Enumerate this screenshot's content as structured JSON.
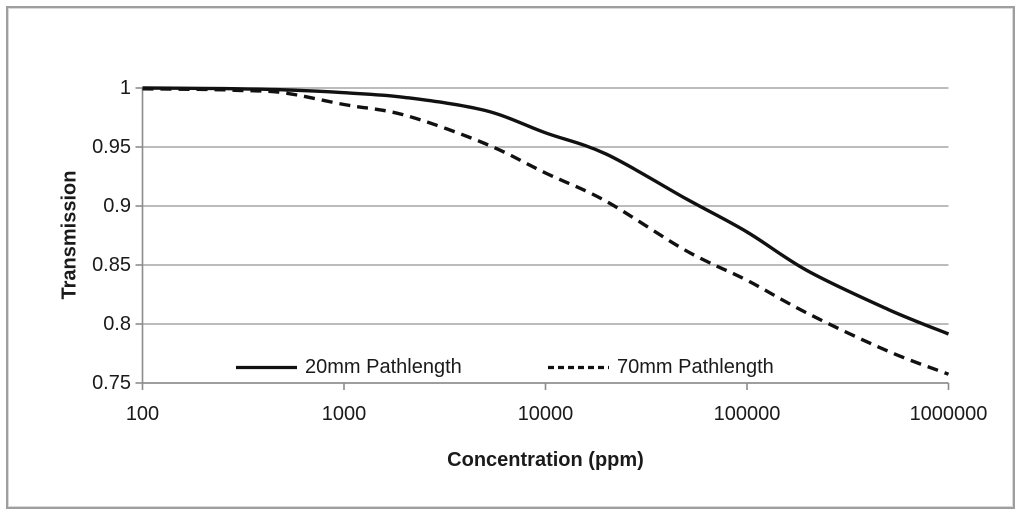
{
  "chart_data": {
    "type": "line",
    "title": "",
    "xlabel": "Concentration (ppm)",
    "ylabel": "Transmission",
    "x_scale": "log",
    "xlim": [
      100,
      1000000
    ],
    "ylim": [
      0.75,
      1.0
    ],
    "grid": "horizontal",
    "legend_position": "inside-bottom",
    "x_ticks": {
      "values": [
        100,
        1000,
        10000,
        100000,
        1000000
      ],
      "labels": [
        "100",
        "1000",
        "10000",
        "100000",
        "1000000"
      ]
    },
    "y_ticks": {
      "values": [
        1,
        0.95,
        0.9,
        0.85,
        0.8,
        0.75
      ],
      "labels": [
        "1",
        "0.95",
        "0.9",
        "0.85",
        "0.8",
        "0.75"
      ]
    },
    "x": [
      100,
      200,
      300,
      500,
      1000,
      2000,
      5000,
      10000,
      20000,
      50000,
      100000,
      200000,
      500000,
      1000000
    ],
    "series": [
      {
        "name": "20mm Pathlength",
        "style": "solid",
        "values": [
          1.0,
          0.9997,
          0.9993,
          0.9985,
          0.996,
          0.992,
          0.981,
          0.962,
          0.944,
          0.906,
          0.878,
          0.845,
          0.8125,
          0.7915
        ]
      },
      {
        "name": "70mm Pathlength",
        "style": "dashed",
        "values": [
          0.9993,
          0.9988,
          0.998,
          0.996,
          0.986,
          0.977,
          0.953,
          0.928,
          0.904,
          0.862,
          0.837,
          0.809,
          0.777,
          0.7575
        ]
      }
    ]
  },
  "colors": {
    "background": "#ffffff",
    "frame": "#9e9e9e",
    "gridline": "#a6a6a6",
    "axis": "#8c8c8c",
    "series_line": "#111111",
    "text": "#1a1a1a"
  }
}
